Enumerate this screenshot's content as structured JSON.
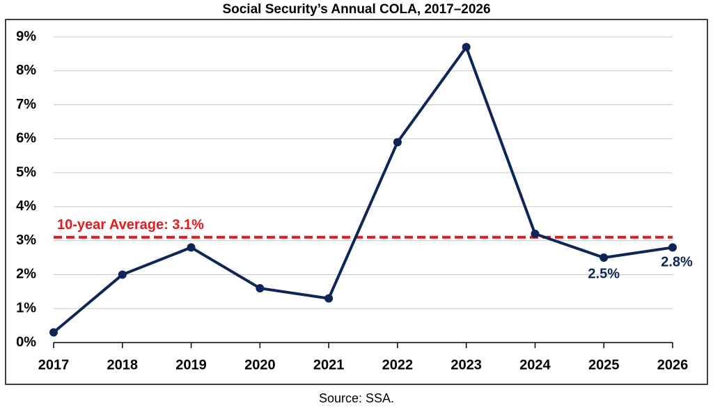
{
  "chart_data": {
    "type": "line",
    "title": "Social Security’s Annual COLA, 2017–2026",
    "categories": [
      "2017",
      "2018",
      "2019",
      "2020",
      "2021",
      "2022",
      "2023",
      "2024",
      "2025",
      "2026"
    ],
    "series": [
      {
        "name": "COLA",
        "color": "#0f2557",
        "values": [
          0.3,
          2.0,
          2.8,
          1.6,
          1.3,
          5.9,
          8.7,
          3.2,
          2.5,
          2.8
        ],
        "value_labels": [
          null,
          null,
          null,
          null,
          null,
          null,
          null,
          null,
          "2.5%",
          "2.8%"
        ]
      }
    ],
    "average": {
      "value": 3.1,
      "label": "10-year Average: 3.1%",
      "color": "#e8191b"
    },
    "ylim": [
      0,
      9
    ],
    "yticks": [
      {
        "value": 0,
        "label": "0%"
      },
      {
        "value": 1,
        "label": "1%"
      },
      {
        "value": 2,
        "label": "2%"
      },
      {
        "value": 3,
        "label": "3%"
      },
      {
        "value": 4,
        "label": "4%"
      },
      {
        "value": 5,
        "label": "5%"
      },
      {
        "value": 6,
        "label": "6%"
      },
      {
        "value": 7,
        "label": "7%"
      },
      {
        "value": 8,
        "label": "8%"
      },
      {
        "value": 9,
        "label": "9%"
      }
    ],
    "grid": true,
    "source": "Source: SSA."
  }
}
